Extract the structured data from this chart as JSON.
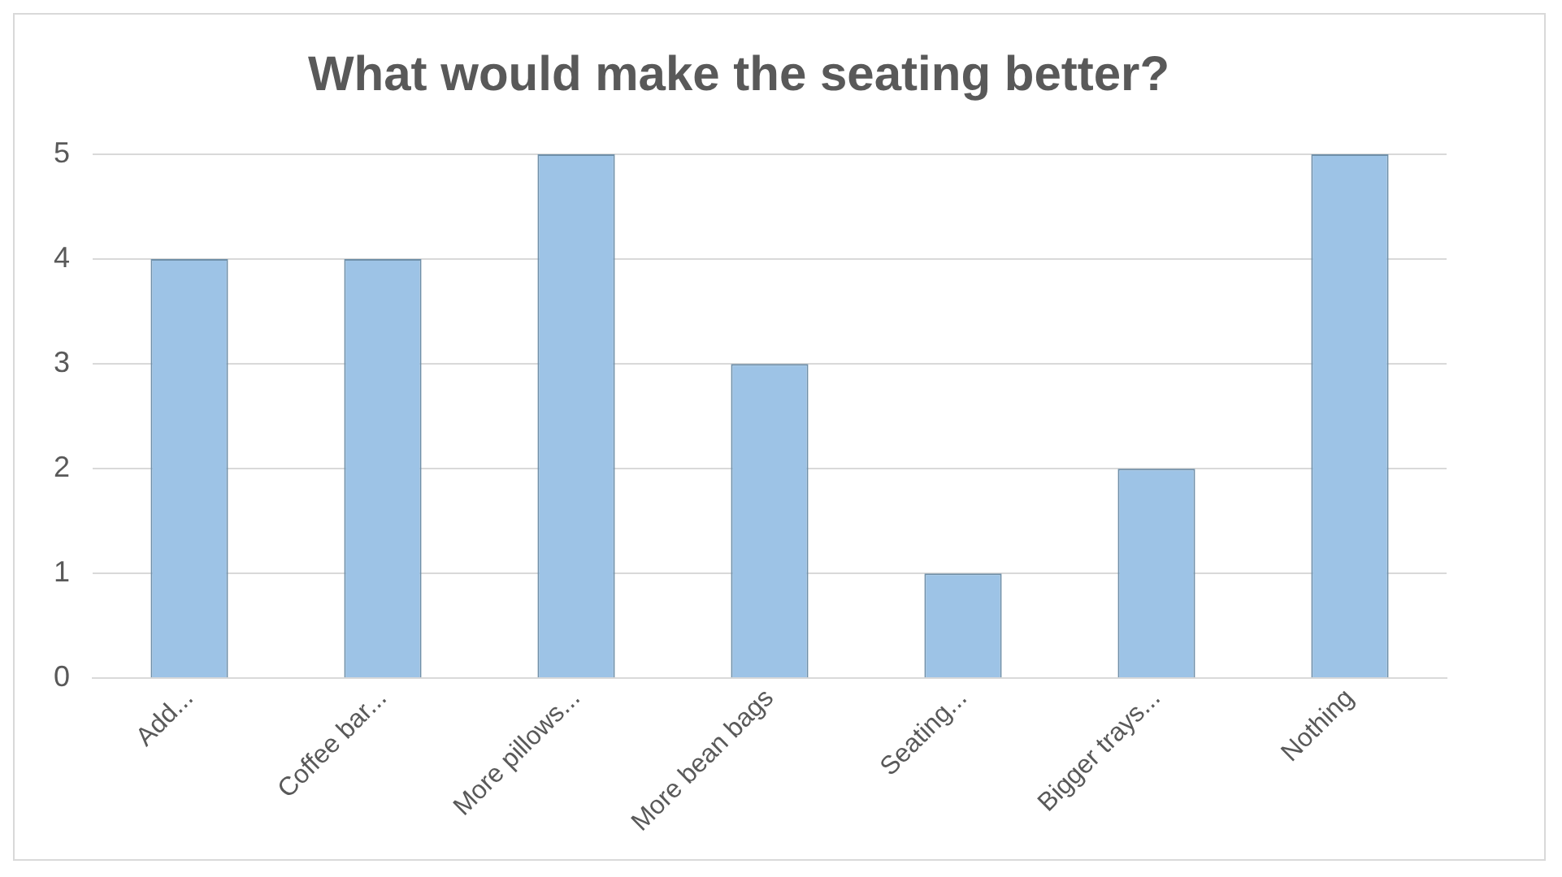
{
  "chart_data": {
    "type": "bar",
    "title": "What would make the seating better?",
    "categories": [
      "Add...",
      "Coffee bar...",
      "More pillows...",
      "More bean bags",
      "Seating...",
      "Bigger trays...",
      "Nothing"
    ],
    "values": [
      4,
      4,
      5,
      3,
      1,
      2,
      5
    ],
    "color": "#9dc3e6",
    "ylim": [
      0,
      5
    ],
    "yticks": [
      0,
      1,
      2,
      3,
      4,
      5
    ],
    "grid": "y",
    "legend": false
  }
}
